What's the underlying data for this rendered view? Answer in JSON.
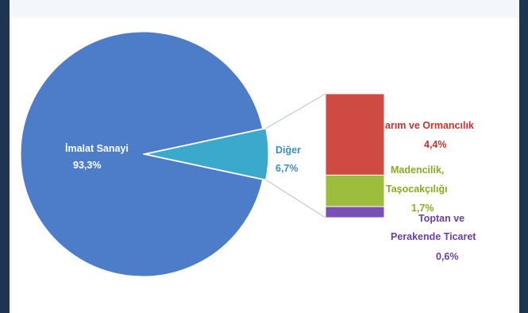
{
  "chart_data": {
    "type": "bar-of-pie",
    "pie": [
      {
        "label": "İmalat Sanayi",
        "value_label": "93,3%",
        "value": 93.3,
        "color": "#4d7cc9"
      },
      {
        "label": "Diğer",
        "value_label": "6,7%",
        "value": 6.7,
        "color": "#3aa9cc"
      }
    ],
    "bar_breakdown": [
      {
        "label": "Tarım ve Ormancılık",
        "value_label": "4,4%",
        "value": 4.4,
        "color": "#d04a44"
      },
      {
        "label": "Madencilik, Taşocakçılığı",
        "value_label": "1,7%",
        "value": 1.7,
        "color": "#9dbe3c"
      },
      {
        "label": "Toptan ve Perakende Ticaret",
        "value_label": "0,6%",
        "value": 0.6,
        "color": "#7c4fb4"
      }
    ],
    "labels": {
      "imalat_name": "İmalat Sanayi",
      "imalat_value": "93,3%",
      "diger_name": "Diğer",
      "diger_value": "6,7%",
      "tarim_name": "arım ve Ormancılık",
      "tarim_value": "4,4%",
      "maden_line1": "Madencilik,",
      "maden_line2": "Taşocakçılığı",
      "maden_value": "1,7%",
      "toptan_line1": "Toptan ve",
      "toptan_line2": "Perakende Ticaret",
      "toptan_value": "0,6%"
    }
  }
}
